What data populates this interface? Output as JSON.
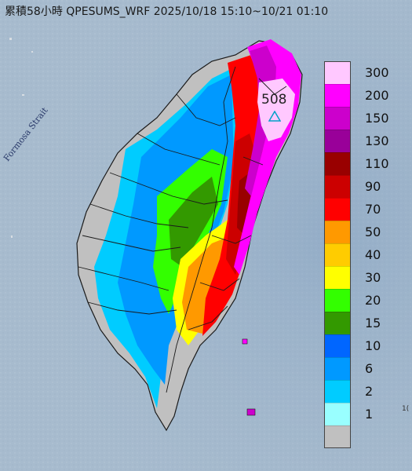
{
  "title": "累積58小時 QPESUMS_WRF 2025/10/18 15:10~10/21 01:10",
  "strait_label": "Formosa Strait",
  "max_value_label": "508",
  "edge_label": "1(",
  "legend": {
    "levels": [
      {
        "label": "300",
        "color": "#ffc8ff"
      },
      {
        "label": "200",
        "color": "#ff00ff"
      },
      {
        "label": "150",
        "color": "#cc00cc"
      },
      {
        "label": "130",
        "color": "#990099"
      },
      {
        "label": "110",
        "color": "#990000"
      },
      {
        "label": "90",
        "color": "#cc0000"
      },
      {
        "label": "70",
        "color": "#ff0000"
      },
      {
        "label": "50",
        "color": "#ff9900"
      },
      {
        "label": "40",
        "color": "#ffcc00"
      },
      {
        "label": "30",
        "color": "#ffff00"
      },
      {
        "label": "20",
        "color": "#33ff00"
      },
      {
        "label": "15",
        "color": "#339900"
      },
      {
        "label": "10",
        "color": "#0066ff"
      },
      {
        "label": "6",
        "color": "#0099ff"
      },
      {
        "label": "2",
        "color": "#00ccff"
      },
      {
        "label": "1",
        "color": "#99ffff"
      },
      {
        "label": "",
        "color": "#c0c0c0"
      }
    ]
  },
  "colors": {
    "sea": "#9fb4c8",
    "no_rain": "#c0c0c0",
    "boundary": "#1a1a1a"
  }
}
